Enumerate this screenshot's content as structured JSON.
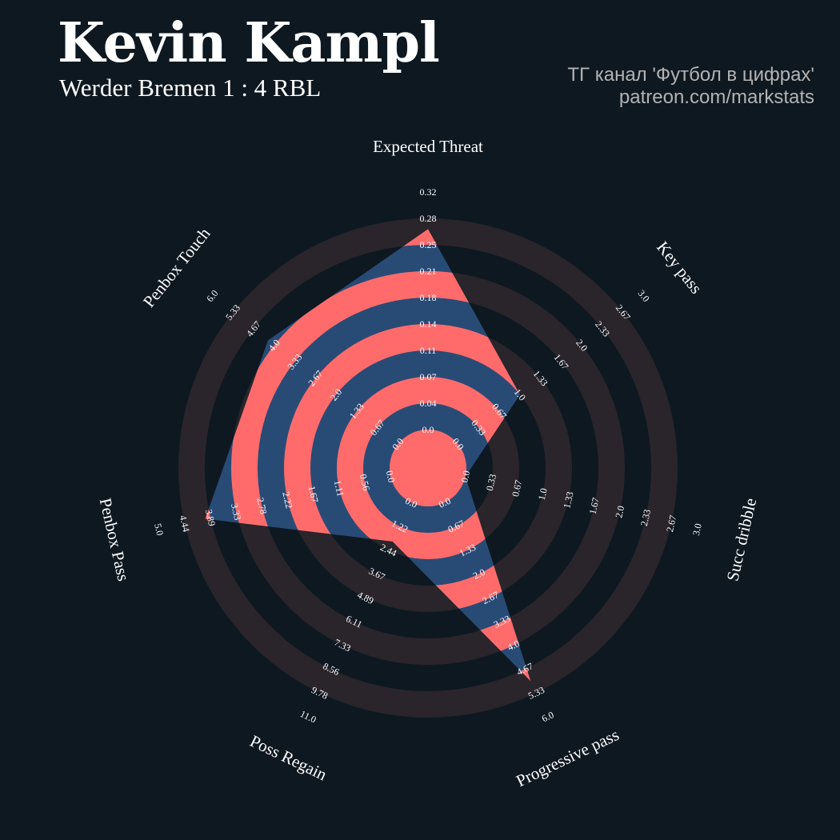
{
  "header": {
    "player_name": "Kevin Kampl",
    "match": "Werder Bremen 1 : 4 RBL",
    "credit_line1": "ТГ канал 'Футбол в цифрах'",
    "credit_line2": "patreon.com/markstats"
  },
  "chart_data": {
    "type": "radar",
    "title": "Kevin Kampl",
    "subtitle": "Werder Bremen 1 : 4 RBL",
    "categories": [
      "Expected Threat",
      "Key pass",
      "Succ dribble",
      "Progressive pass",
      "Poss Regain",
      "Penbox Pass",
      "Penbox Touch"
    ],
    "ranges": [
      [
        0,
        0.32
      ],
      [
        0,
        3.0
      ],
      [
        0,
        3.0
      ],
      [
        0,
        6.0
      ],
      [
        0,
        11.0
      ],
      [
        0,
        5.0
      ],
      [
        0,
        6.0
      ]
    ],
    "tick_labels": [
      [
        "0.0",
        "0.04",
        "0.07",
        "0.11",
        "0.14",
        "0.18",
        "0.21",
        "0.25",
        "0.28",
        "0.32"
      ],
      [
        "0.0",
        "0.33",
        "0.67",
        "1.0",
        "1.33",
        "1.67",
        "2.0",
        "2.33",
        "2.67",
        "3.0"
      ],
      [
        "0.0",
        "0.33",
        "0.67",
        "1.0",
        "1.33",
        "1.67",
        "2.0",
        "2.33",
        "2.67",
        "3.0"
      ],
      [
        "0.0",
        "0.67",
        "1.33",
        "2.0",
        "2.67",
        "3.33",
        "4.0",
        "4.67",
        "5.33",
        "6.0"
      ],
      [
        "0.0",
        "1.22",
        "2.44",
        "3.67",
        "4.89",
        "6.11",
        "7.33",
        "8.56",
        "9.78",
        "11.0"
      ],
      [
        "0.0",
        "0.56",
        "1.11",
        "1.67",
        "2.22",
        "2.78",
        "3.33",
        "3.89",
        "4.44",
        "5.0"
      ],
      [
        "0.0",
        "0.67",
        "1.33",
        "2.0",
        "2.67",
        "3.33",
        "4.0",
        "4.67",
        "5.33",
        "6.0"
      ]
    ],
    "series": [
      {
        "values": [
          0.27,
          1.0,
          0.0,
          5.0,
          2.0,
          4.0,
          4.2
        ]
      }
    ],
    "colors": {
      "background": "#0e1821",
      "ring": "#29252b",
      "polygon": "#284b76",
      "polygon_ring": "#ff6b6b",
      "text": "#ffffff"
    }
  }
}
